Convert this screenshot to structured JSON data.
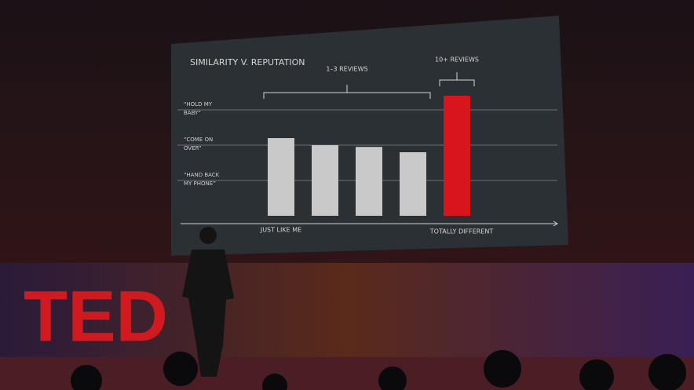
{
  "logo": "TED",
  "chart_data": {
    "type": "bar",
    "title": "SIMILARITY V. REPUTATION",
    "categories": [
      null,
      null,
      null,
      null,
      null
    ],
    "values": [
      2.2,
      2.0,
      1.95,
      1.8,
      3.4
    ],
    "colors": [
      "#c9c9c9",
      "#c9c9c9",
      "#c9c9c9",
      "#c9c9c9",
      "#d8141c"
    ],
    "ylim": [
      0,
      3.6
    ],
    "yticks": [
      {
        "value": 1,
        "label": "“HAND BACK MY PHONE”"
      },
      {
        "value": 2,
        "label": "“COME ON OVER”"
      },
      {
        "value": 3,
        "label": "“HOLD MY BABY”"
      }
    ],
    "grid": true,
    "bracket_labels": [
      "1–3 REVIEWS",
      "10+ REVIEWS"
    ],
    "x_labels": [
      "JUST LIKE ME",
      "TOTALLY DIFFERENT"
    ]
  }
}
